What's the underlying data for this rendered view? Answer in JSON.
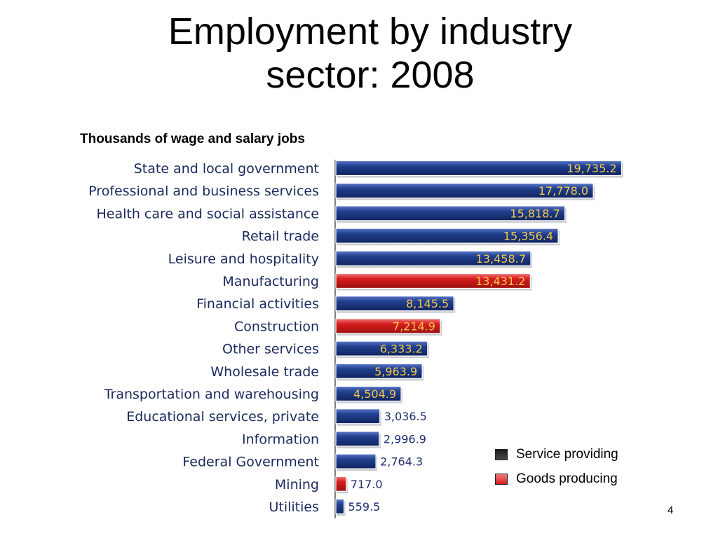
{
  "slide": {
    "title_line1": "Employment by industry",
    "title_line2": "sector: 2008",
    "page_number": "4"
  },
  "colors": {
    "service": "#1d3a87",
    "goods": "#d81e1e",
    "label_inside": "#f2c94c",
    "label_outside": "#1d2f6e",
    "category_text": "#1a2a5e"
  },
  "chart_data": {
    "type": "bar",
    "orientation": "horizontal",
    "subtitle": "Thousands of wage and salary jobs",
    "categories": [
      "State and local government",
      "Professional and business services",
      "Health care and social assistance",
      "Retail trade",
      "Leisure and hospitality",
      "Manufacturing",
      "Financial activities",
      "Construction",
      "Other services",
      "Wholesale trade",
      "Transportation and warehousing",
      "Educational services, private",
      "Information",
      "Federal Government",
      "Mining",
      "Utilities"
    ],
    "values": [
      19735.2,
      17778.0,
      15818.7,
      15356.4,
      13458.7,
      13431.2,
      8145.5,
      7214.9,
      6333.2,
      5963.9,
      4504.9,
      3036.5,
      2996.9,
      2764.3,
      717.0,
      559.5
    ],
    "value_labels": [
      "19,735.2",
      "17,778.0",
      "15,818.7",
      "15,356.4",
      "13,458.7",
      "13,431.2",
      "8,145.5",
      "7,214.9",
      "6,333.2",
      "5,963.9",
      "4,504.9",
      "3,036.5",
      "2,996.9",
      "2,764.3",
      "717.0",
      "559.5"
    ],
    "sector": [
      "service",
      "service",
      "service",
      "service",
      "service",
      "goods",
      "service",
      "goods",
      "service",
      "service",
      "service",
      "service",
      "service",
      "service",
      "goods",
      "service"
    ],
    "legend": [
      {
        "key": "service",
        "label": "Service providing"
      },
      {
        "key": "goods",
        "label": "Goods producing"
      }
    ],
    "legend_position": "lower-right",
    "grid": false,
    "xlim": [
      0,
      20000
    ]
  }
}
